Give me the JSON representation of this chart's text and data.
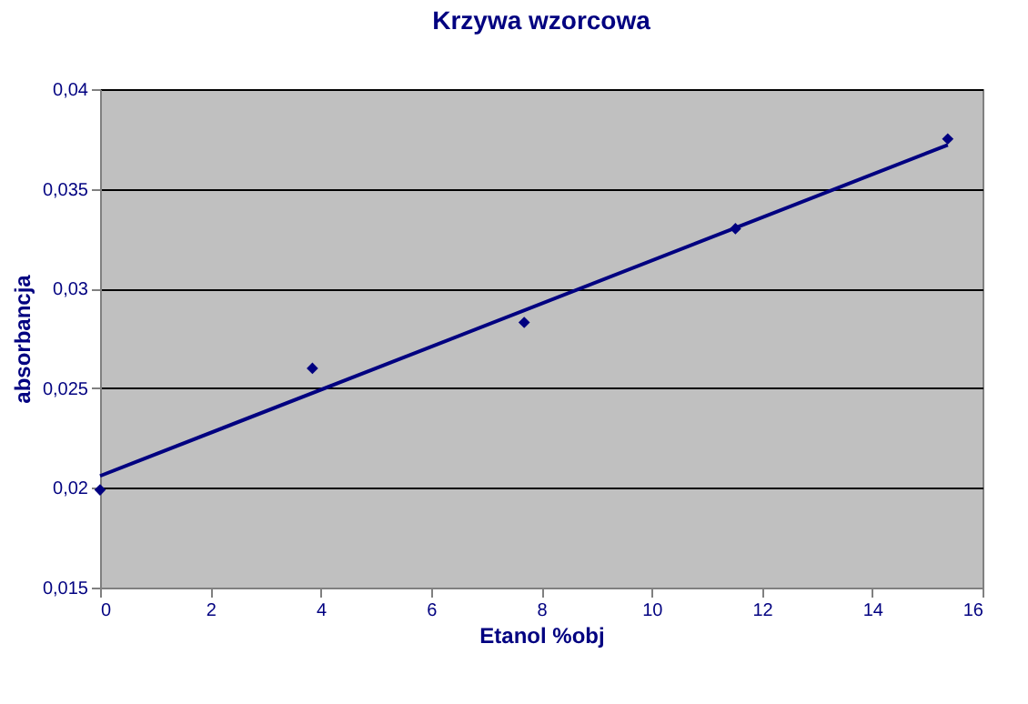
{
  "chart_data": {
    "type": "scatter",
    "title": "Krzywa wzorcowa",
    "xlabel": "Etanol %obj",
    "ylabel": "absorbancja",
    "xlim": [
      0,
      16
    ],
    "xticks": [
      0,
      2,
      4,
      6,
      8,
      10,
      12,
      14,
      16
    ],
    "ylim": [
      0.015,
      0.04
    ],
    "yticks": [
      {
        "value": 0.015,
        "label": "0,015"
      },
      {
        "value": 0.02,
        "label": "0,02"
      },
      {
        "value": 0.025,
        "label": "0,025"
      },
      {
        "value": 0.03,
        "label": "0,03"
      },
      {
        "value": 0.035,
        "label": "0,035"
      },
      {
        "value": 0.04,
        "label": "0,04"
      }
    ],
    "grid": "y",
    "series": [
      {
        "marker": "diamond",
        "color": "#000080",
        "x": [
          0,
          3.85,
          7.69,
          11.52,
          15.37
        ],
        "values": [
          0.0199,
          0.026,
          0.0283,
          0.033,
          0.0375
        ]
      },
      {
        "type": "line",
        "marker": "none",
        "color": "#000080",
        "x": [
          0,
          15.37
        ],
        "values": [
          0.0206,
          0.0372
        ]
      }
    ]
  }
}
